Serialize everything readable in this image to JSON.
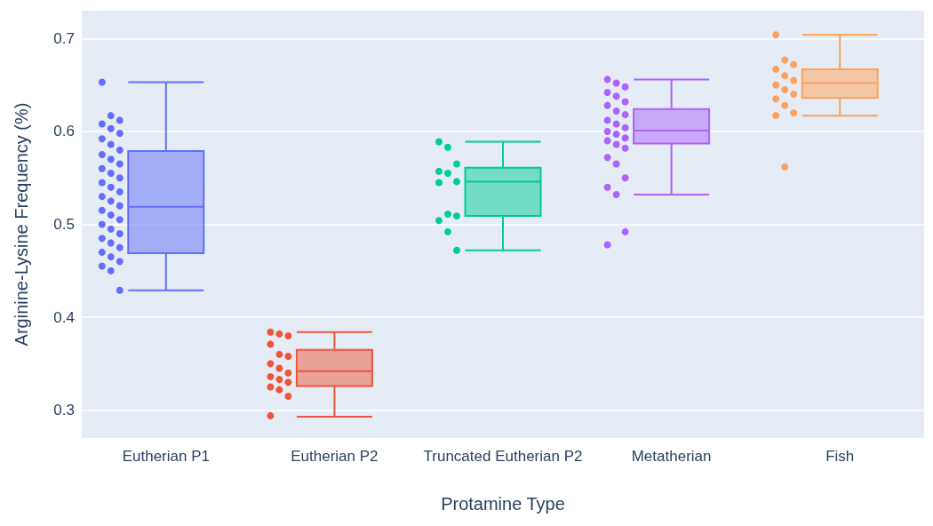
{
  "chart_data": {
    "type": "box",
    "xlabel": "Protamine Type",
    "ylabel": "Arginine-Lysine Frequency (%)",
    "categories": [
      "Eutherian P1",
      "Eutherian P2",
      "Truncated Eutherian P2",
      "Metatherian",
      "Fish"
    ],
    "ylim": [
      0.27,
      0.73
    ],
    "yticks": [
      0.3,
      0.4,
      0.5,
      0.6,
      0.7
    ],
    "grid": "y",
    "marker": "circle",
    "series": [
      {
        "colors": [
          "#636efa",
          "#ef553b",
          "#00cc96",
          "#ab63fa",
          "#ffa15a"
        ],
        "boxes": [
          {
            "low": 0.429,
            "q1": 0.469,
            "median": 0.519,
            "q3": 0.579,
            "high": 0.653
          },
          {
            "low": 0.293,
            "q1": 0.326,
            "median": 0.342,
            "q3": 0.365,
            "high": 0.384
          },
          {
            "low": 0.472,
            "q1": 0.509,
            "median": 0.546,
            "q3": 0.561,
            "high": 0.589
          },
          {
            "low": 0.532,
            "q1": 0.587,
            "median": 0.601,
            "q3": 0.624,
            "high": 0.656
          },
          {
            "low": 0.617,
            "q1": 0.636,
            "median": 0.652,
            "q3": 0.667,
            "high": 0.704
          }
        ]
      },
      {
        "type": "scatter",
        "color": "#636efa",
        "x": [
          "Eutherian P1",
          "Eutherian P1",
          "Eutherian P1",
          "Eutherian P1",
          "Eutherian P1",
          "Eutherian P1",
          "Eutherian P1",
          "Eutherian P1",
          "Eutherian P1",
          "Eutherian P1",
          "Eutherian P1",
          "Eutherian P1",
          "Eutherian P1",
          "Eutherian P1",
          "Eutherian P1",
          "Eutherian P1",
          "Eutherian P1",
          "Eutherian P1",
          "Eutherian P1",
          "Eutherian P1",
          "Eutherian P1",
          "Eutherian P1",
          "Eutherian P1",
          "Eutherian P1",
          "Eutherian P1",
          "Eutherian P1",
          "Eutherian P1",
          "Eutherian P1",
          "Eutherian P1",
          "Eutherian P1",
          "Eutherian P1",
          "Eutherian P1",
          "Eutherian P1",
          "Eutherian P1",
          "Eutherian P1",
          "Eutherian P1"
        ],
        "values": [
          0.653,
          0.617,
          0.612,
          0.608,
          0.603,
          0.598,
          0.592,
          0.586,
          0.58,
          0.575,
          0.57,
          0.565,
          0.56,
          0.555,
          0.55,
          0.545,
          0.54,
          0.535,
          0.53,
          0.525,
          0.52,
          0.515,
          0.51,
          0.505,
          0.5,
          0.495,
          0.49,
          0.485,
          0.48,
          0.475,
          0.47,
          0.465,
          0.46,
          0.455,
          0.45,
          0.429
        ]
      },
      {
        "type": "scatter",
        "color": "#ef553b",
        "x": [
          "Eutherian P2",
          "Eutherian P2",
          "Eutherian P2",
          "Eutherian P2",
          "Eutherian P2",
          "Eutherian P2",
          "Eutherian P2",
          "Eutherian P2",
          "Eutherian P2",
          "Eutherian P2",
          "Eutherian P2",
          "Eutherian P2",
          "Eutherian P2",
          "Eutherian P2",
          "Eutherian P2",
          "Eutherian P2"
        ],
        "values": [
          0.384,
          0.382,
          0.38,
          0.371,
          0.36,
          0.358,
          0.35,
          0.345,
          0.34,
          0.336,
          0.333,
          0.33,
          0.325,
          0.322,
          0.315,
          0.294
        ]
      },
      {
        "type": "scatter",
        "color": "#00cc96",
        "x": [
          "Truncated Eutherian P2",
          "Truncated Eutherian P2",
          "Truncated Eutherian P2",
          "Truncated Eutherian P2",
          "Truncated Eutherian P2",
          "Truncated Eutherian P2",
          "Truncated Eutherian P2",
          "Truncated Eutherian P2",
          "Truncated Eutherian P2",
          "Truncated Eutherian P2",
          "Truncated Eutherian P2",
          "Truncated Eutherian P2"
        ],
        "values": [
          0.589,
          0.583,
          0.565,
          0.557,
          0.555,
          0.546,
          0.545,
          0.511,
          0.509,
          0.504,
          0.492,
          0.472
        ]
      },
      {
        "type": "scatter",
        "color": "#ab63fa",
        "x": [
          "Metatherian",
          "Metatherian",
          "Metatherian",
          "Metatherian",
          "Metatherian",
          "Metatherian",
          "Metatherian",
          "Metatherian",
          "Metatherian",
          "Metatherian",
          "Metatherian",
          "Metatherian",
          "Metatherian",
          "Metatherian",
          "Metatherian",
          "Metatherian",
          "Metatherian",
          "Metatherian",
          "Metatherian",
          "Metatherian",
          "Metatherian",
          "Metatherian",
          "Metatherian",
          "Metatherian",
          "Metatherian"
        ],
        "values": [
          0.656,
          0.652,
          0.648,
          0.642,
          0.638,
          0.632,
          0.628,
          0.622,
          0.618,
          0.612,
          0.608,
          0.604,
          0.6,
          0.597,
          0.593,
          0.59,
          0.586,
          0.582,
          0.572,
          0.565,
          0.55,
          0.54,
          0.532,
          0.492,
          0.478
        ]
      },
      {
        "type": "scatter",
        "color": "#ffa15a",
        "x": [
          "Fish",
          "Fish",
          "Fish",
          "Fish",
          "Fish",
          "Fish",
          "Fish",
          "Fish",
          "Fish",
          "Fish",
          "Fish",
          "Fish",
          "Fish",
          "Fish"
        ],
        "values": [
          0.704,
          0.677,
          0.672,
          0.667,
          0.66,
          0.655,
          0.65,
          0.645,
          0.64,
          0.635,
          0.628,
          0.62,
          0.617,
          0.562
        ]
      }
    ]
  }
}
